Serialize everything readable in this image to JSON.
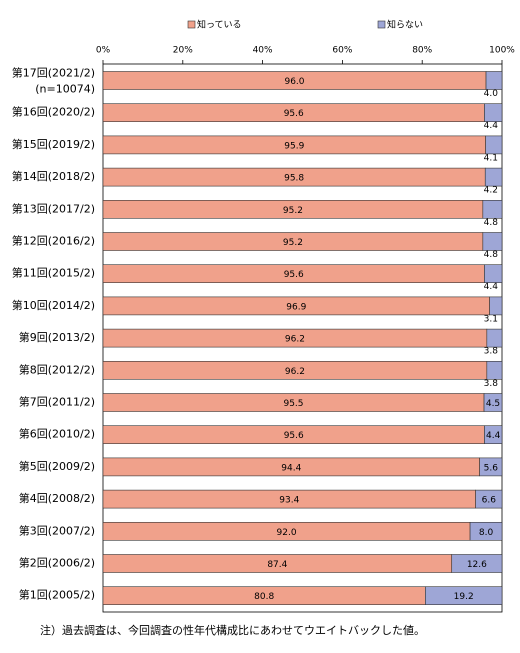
{
  "chart_data": {
    "type": "stacked-bar-horizontal",
    "categories": [
      "第17回(2021/2)",
      "第16回(2020/2)",
      "第15回(2019/2)",
      "第14回(2018/2)",
      "第13回(2017/2)",
      "第12回(2016/2)",
      "第11回(2015/2)",
      "第10回(2014/2)",
      "第9回(2013/2)",
      "第8回(2012/2)",
      "第7回(2011/2)",
      "第6回(2010/2)",
      "第5回(2009/2)",
      "第4回(2008/2)",
      "第3回(2007/2)",
      "第2回(2006/2)",
      "第1回(2005/2)"
    ],
    "sample_size_label": "(n=10074)",
    "series": [
      {
        "name": "知っている",
        "color": "#f0a18b",
        "values": [
          96.0,
          95.6,
          95.9,
          95.8,
          95.2,
          95.2,
          95.6,
          96.9,
          96.2,
          96.2,
          95.5,
          95.6,
          94.4,
          93.4,
          92.0,
          87.4,
          80.8
        ],
        "value_labels": [
          "96.0",
          "95.6",
          "95.9",
          "95.8",
          "95.2",
          "95.2",
          "95.6",
          "96.9",
          "96.2",
          "96.2",
          "95.5",
          "95.6",
          "94.4",
          "93.4",
          "92.0",
          "87.4",
          "80.8"
        ]
      },
      {
        "name": "知らない",
        "color": "#9ea6d6",
        "values": [
          4.0,
          4.4,
          4.1,
          4.2,
          4.8,
          4.8,
          4.4,
          3.1,
          3.8,
          3.8,
          4.5,
          4.4,
          5.6,
          6.6,
          8.0,
          12.6,
          19.2
        ],
        "value_labels": [
          "4.0",
          "4.4",
          "4.1",
          "4.2",
          "4.8",
          "4.8",
          "4.4",
          "3.1",
          "3.8",
          "3.8",
          "4.5",
          "4.4",
          "5.6",
          "6.6",
          "8.0",
          "12.6",
          "19.2"
        ]
      }
    ],
    "xlim": [
      0,
      100
    ],
    "xticks": [
      {
        "value": 0,
        "label": "0%"
      },
      {
        "value": 20,
        "label": "20%"
      },
      {
        "value": 40,
        "label": "40%"
      },
      {
        "value": 60,
        "label": "60%"
      },
      {
        "value": 80,
        "label": "80%"
      },
      {
        "value": 100,
        "label": "100%"
      }
    ],
    "note": "注）過去調査は、今回調査の性年代構成比にあわせてウエイトバックした値。"
  }
}
